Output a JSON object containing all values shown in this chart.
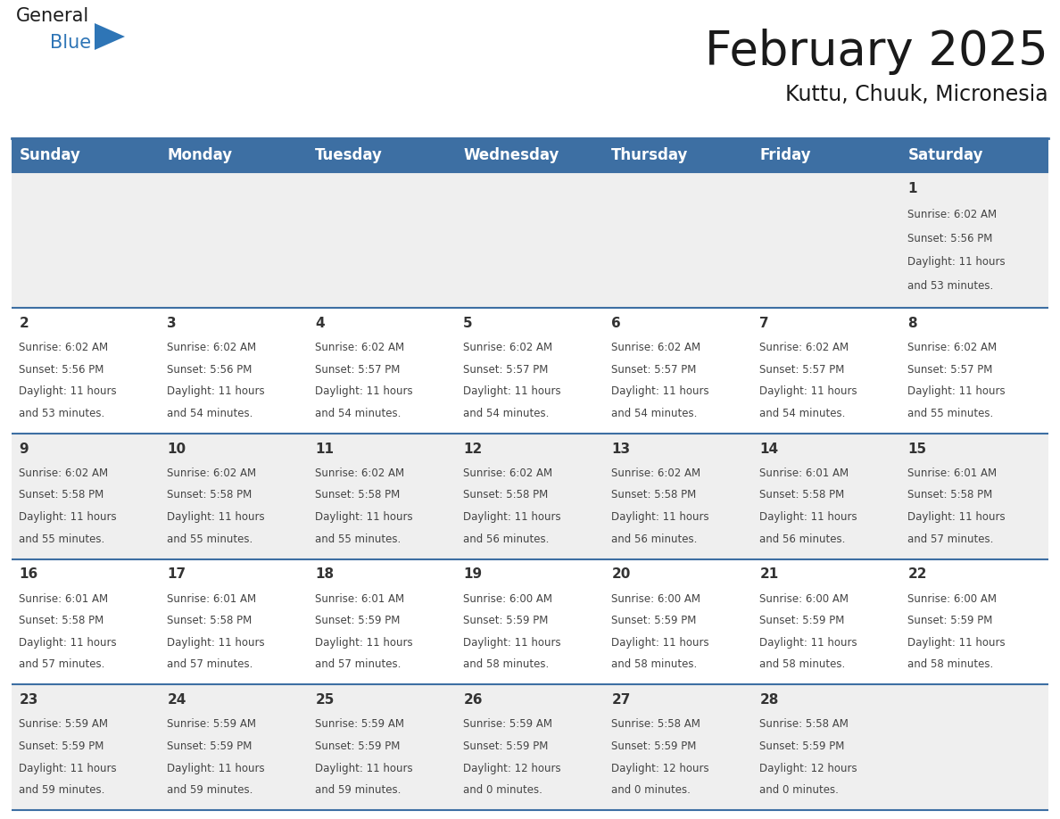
{
  "title": "February 2025",
  "subtitle": "Kuttu, Chuuk, Micronesia",
  "header_bg": "#3d6fa3",
  "header_text_color": "#ffffff",
  "day_names": [
    "Sunday",
    "Monday",
    "Tuesday",
    "Wednesday",
    "Thursday",
    "Friday",
    "Saturday"
  ],
  "row_bg_odd": "#efefef",
  "row_bg_even": "#ffffff",
  "cell_border_color": "#3d6fa3",
  "day_num_color": "#333333",
  "info_text_color": "#444444",
  "days": [
    {
      "date": 1,
      "col": 6,
      "row": 0,
      "sunrise": "6:02 AM",
      "sunset": "5:56 PM",
      "daylight_h": "11 hours",
      "daylight_m": "and 53 minutes."
    },
    {
      "date": 2,
      "col": 0,
      "row": 1,
      "sunrise": "6:02 AM",
      "sunset": "5:56 PM",
      "daylight_h": "11 hours",
      "daylight_m": "and 53 minutes."
    },
    {
      "date": 3,
      "col": 1,
      "row": 1,
      "sunrise": "6:02 AM",
      "sunset": "5:56 PM",
      "daylight_h": "11 hours",
      "daylight_m": "and 54 minutes."
    },
    {
      "date": 4,
      "col": 2,
      "row": 1,
      "sunrise": "6:02 AM",
      "sunset": "5:57 PM",
      "daylight_h": "11 hours",
      "daylight_m": "and 54 minutes."
    },
    {
      "date": 5,
      "col": 3,
      "row": 1,
      "sunrise": "6:02 AM",
      "sunset": "5:57 PM",
      "daylight_h": "11 hours",
      "daylight_m": "and 54 minutes."
    },
    {
      "date": 6,
      "col": 4,
      "row": 1,
      "sunrise": "6:02 AM",
      "sunset": "5:57 PM",
      "daylight_h": "11 hours",
      "daylight_m": "and 54 minutes."
    },
    {
      "date": 7,
      "col": 5,
      "row": 1,
      "sunrise": "6:02 AM",
      "sunset": "5:57 PM",
      "daylight_h": "11 hours",
      "daylight_m": "and 54 minutes."
    },
    {
      "date": 8,
      "col": 6,
      "row": 1,
      "sunrise": "6:02 AM",
      "sunset": "5:57 PM",
      "daylight_h": "11 hours",
      "daylight_m": "and 55 minutes."
    },
    {
      "date": 9,
      "col": 0,
      "row": 2,
      "sunrise": "6:02 AM",
      "sunset": "5:58 PM",
      "daylight_h": "11 hours",
      "daylight_m": "and 55 minutes."
    },
    {
      "date": 10,
      "col": 1,
      "row": 2,
      "sunrise": "6:02 AM",
      "sunset": "5:58 PM",
      "daylight_h": "11 hours",
      "daylight_m": "and 55 minutes."
    },
    {
      "date": 11,
      "col": 2,
      "row": 2,
      "sunrise": "6:02 AM",
      "sunset": "5:58 PM",
      "daylight_h": "11 hours",
      "daylight_m": "and 55 minutes."
    },
    {
      "date": 12,
      "col": 3,
      "row": 2,
      "sunrise": "6:02 AM",
      "sunset": "5:58 PM",
      "daylight_h": "11 hours",
      "daylight_m": "and 56 minutes."
    },
    {
      "date": 13,
      "col": 4,
      "row": 2,
      "sunrise": "6:02 AM",
      "sunset": "5:58 PM",
      "daylight_h": "11 hours",
      "daylight_m": "and 56 minutes."
    },
    {
      "date": 14,
      "col": 5,
      "row": 2,
      "sunrise": "6:01 AM",
      "sunset": "5:58 PM",
      "daylight_h": "11 hours",
      "daylight_m": "and 56 minutes."
    },
    {
      "date": 15,
      "col": 6,
      "row": 2,
      "sunrise": "6:01 AM",
      "sunset": "5:58 PM",
      "daylight_h": "11 hours",
      "daylight_m": "and 57 minutes."
    },
    {
      "date": 16,
      "col": 0,
      "row": 3,
      "sunrise": "6:01 AM",
      "sunset": "5:58 PM",
      "daylight_h": "11 hours",
      "daylight_m": "and 57 minutes."
    },
    {
      "date": 17,
      "col": 1,
      "row": 3,
      "sunrise": "6:01 AM",
      "sunset": "5:58 PM",
      "daylight_h": "11 hours",
      "daylight_m": "and 57 minutes."
    },
    {
      "date": 18,
      "col": 2,
      "row": 3,
      "sunrise": "6:01 AM",
      "sunset": "5:59 PM",
      "daylight_h": "11 hours",
      "daylight_m": "and 57 minutes."
    },
    {
      "date": 19,
      "col": 3,
      "row": 3,
      "sunrise": "6:00 AM",
      "sunset": "5:59 PM",
      "daylight_h": "11 hours",
      "daylight_m": "and 58 minutes."
    },
    {
      "date": 20,
      "col": 4,
      "row": 3,
      "sunrise": "6:00 AM",
      "sunset": "5:59 PM",
      "daylight_h": "11 hours",
      "daylight_m": "and 58 minutes."
    },
    {
      "date": 21,
      "col": 5,
      "row": 3,
      "sunrise": "6:00 AM",
      "sunset": "5:59 PM",
      "daylight_h": "11 hours",
      "daylight_m": "and 58 minutes."
    },
    {
      "date": 22,
      "col": 6,
      "row": 3,
      "sunrise": "6:00 AM",
      "sunset": "5:59 PM",
      "daylight_h": "11 hours",
      "daylight_m": "and 58 minutes."
    },
    {
      "date": 23,
      "col": 0,
      "row": 4,
      "sunrise": "5:59 AM",
      "sunset": "5:59 PM",
      "daylight_h": "11 hours",
      "daylight_m": "and 59 minutes."
    },
    {
      "date": 24,
      "col": 1,
      "row": 4,
      "sunrise": "5:59 AM",
      "sunset": "5:59 PM",
      "daylight_h": "11 hours",
      "daylight_m": "and 59 minutes."
    },
    {
      "date": 25,
      "col": 2,
      "row": 4,
      "sunrise": "5:59 AM",
      "sunset": "5:59 PM",
      "daylight_h": "11 hours",
      "daylight_m": "and 59 minutes."
    },
    {
      "date": 26,
      "col": 3,
      "row": 4,
      "sunrise": "5:59 AM",
      "sunset": "5:59 PM",
      "daylight_h": "12 hours",
      "daylight_m": "and 0 minutes."
    },
    {
      "date": 27,
      "col": 4,
      "row": 4,
      "sunrise": "5:58 AM",
      "sunset": "5:59 PM",
      "daylight_h": "12 hours",
      "daylight_m": "and 0 minutes."
    },
    {
      "date": 28,
      "col": 5,
      "row": 4,
      "sunrise": "5:58 AM",
      "sunset": "5:59 PM",
      "daylight_h": "12 hours",
      "daylight_m": "and 0 minutes."
    }
  ],
  "num_rows": 5,
  "logo_triangle_color": "#2e75b6",
  "title_fontsize": 38,
  "subtitle_fontsize": 17,
  "header_fontsize": 12,
  "day_num_fontsize": 11,
  "info_fontsize": 8.5
}
